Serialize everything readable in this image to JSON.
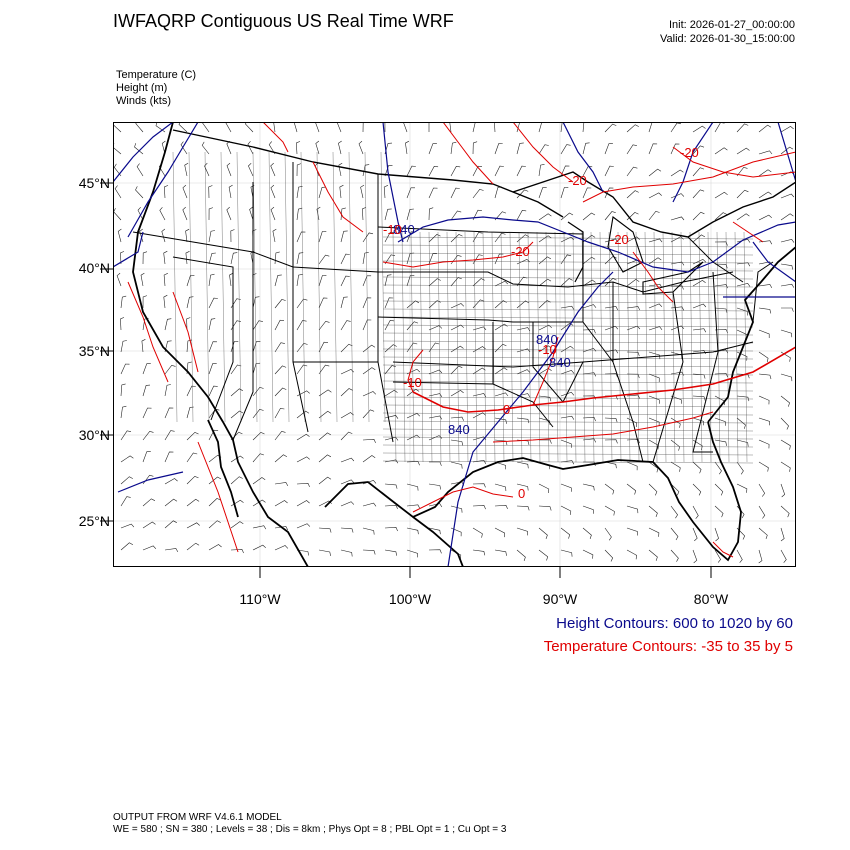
{
  "header": {
    "title": "IWFAQRP Contiguous US Real Time WRF",
    "init": "Init: 2026-01-27_00:00:00",
    "valid": "Valid: 2026-01-30_15:00:00"
  },
  "fields": [
    "Temperature   (C)",
    "Height   (m)",
    "Winds   (kts)"
  ],
  "axes": {
    "lat_labels": [
      "45°N",
      "40°N",
      "35°N",
      "30°N",
      "25°N"
    ],
    "lon_labels": [
      "110°W",
      "100°W",
      "90°W",
      "80°W"
    ]
  },
  "contour_labels": {
    "height": [
      "840",
      "840",
      "840",
      "840"
    ],
    "temperature": [
      "-20",
      "-20",
      "-20",
      "-20",
      "-10",
      "-10",
      "-10",
      "0",
      "0"
    ]
  },
  "legend": {
    "height": "Height Contours: 600 to 1020 by 60",
    "temperature": "Temperature Contours: -35 to 35 by 5"
  },
  "footer": {
    "line1": "OUTPUT FROM WRF V4.6.1 MODEL",
    "line2": "WE = 580 ; SN = 380 ; Levels = 38 ; Dis = 8km ; Phys Opt = 8 ; PBL Opt = 1 ; Cu Opt = 3"
  },
  "colors": {
    "height": "#0a0a8c",
    "temperature": "#e00000",
    "borders": "#000000"
  }
}
